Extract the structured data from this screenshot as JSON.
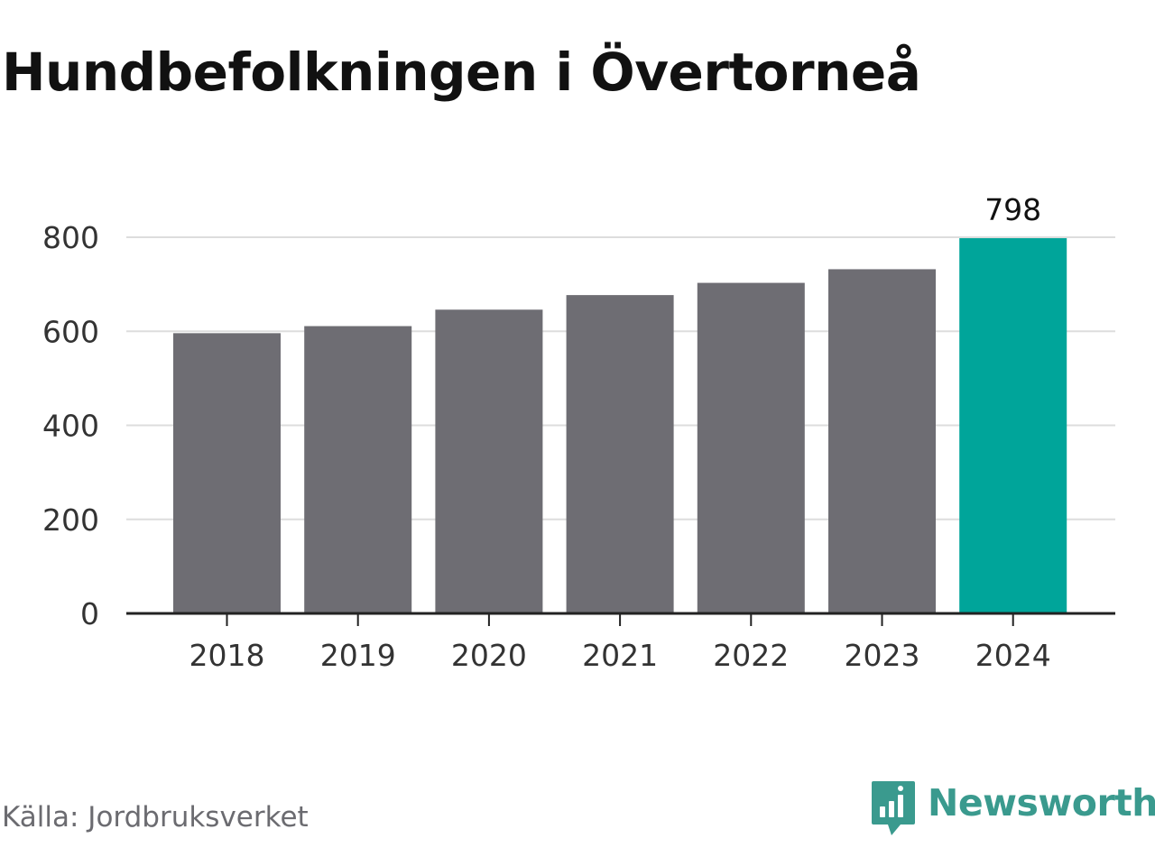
{
  "title": "Hundbefolkningen i Övertorneå",
  "source": "Källa: Jordbruksverket",
  "brand": {
    "name": "Newsworthy",
    "icon": "newsworthy-logo-icon",
    "color": "#3a9a8e"
  },
  "colors": {
    "bar": "#6e6d73",
    "highlight": "#00a59a",
    "grid": "#dddddd",
    "axis": "#222222",
    "text": "#333333"
  },
  "chart_data": {
    "type": "bar",
    "categories": [
      "2018",
      "2019",
      "2020",
      "2021",
      "2022",
      "2023",
      "2024"
    ],
    "values": [
      596,
      611,
      646,
      677,
      703,
      732,
      798
    ],
    "highlight_index": 6,
    "data_labels": [
      {
        "index": 6,
        "text": "798"
      }
    ],
    "title": "Hundbefolkningen i Övertorneå",
    "xlabel": "",
    "ylabel": "",
    "ylim": [
      0,
      800
    ],
    "yticks": [
      0,
      200,
      400,
      600,
      800
    ],
    "grid": true,
    "legend": "none"
  }
}
